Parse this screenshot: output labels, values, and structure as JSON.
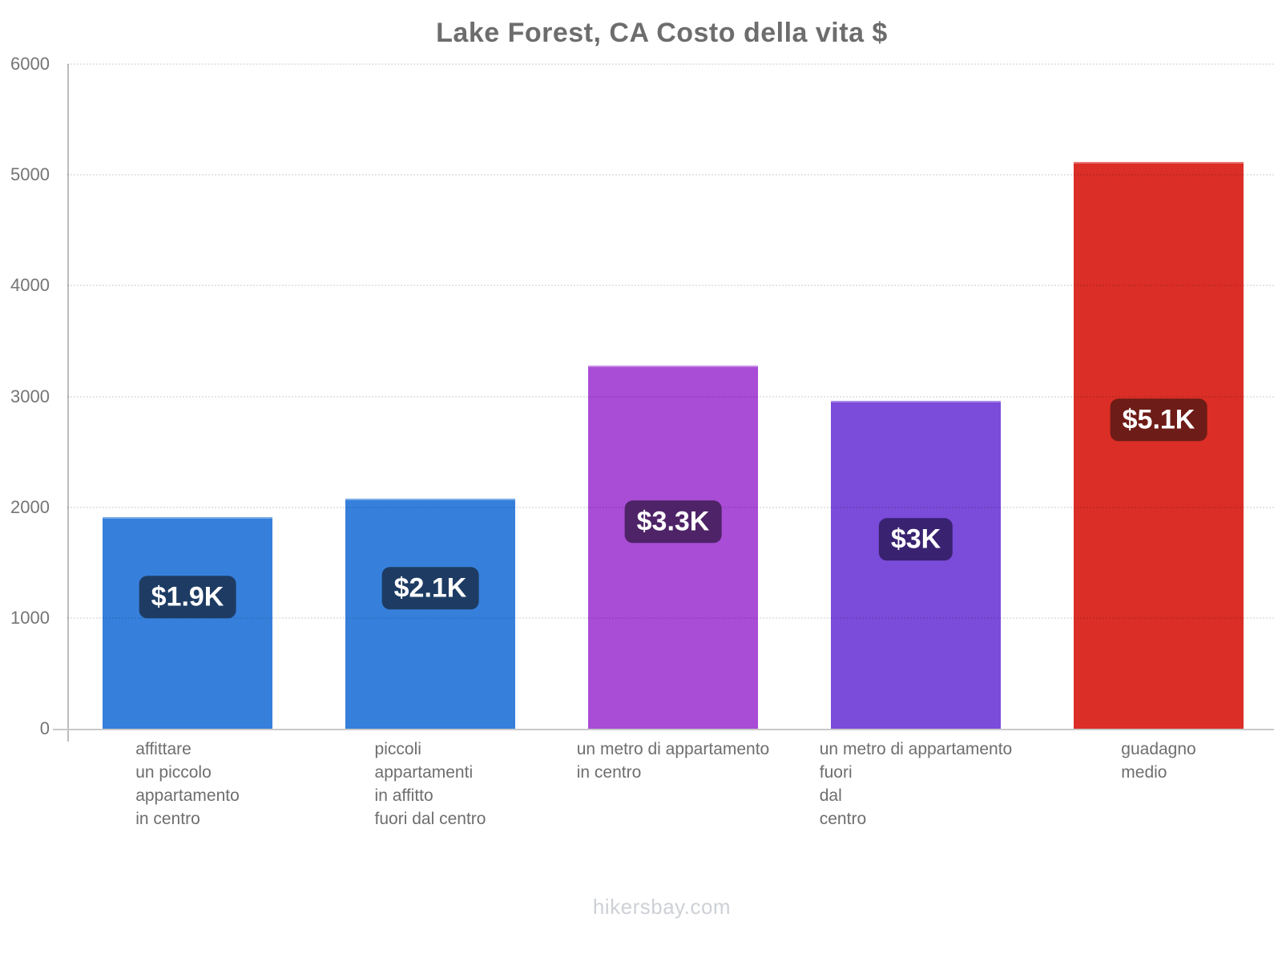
{
  "title": "Lake Forest, CA Costo della vita $",
  "footer": "hikersbay.com",
  "chart_data": {
    "type": "bar",
    "title": "Lake Forest, CA Costo della vita $",
    "categories": [
      [
        "affittare",
        "un piccolo",
        "appartamento",
        "in centro"
      ],
      [
        "piccoli",
        "appartamenti",
        "in affitto",
        "fuori dal centro"
      ],
      [
        "un metro di appartamento",
        "in centro"
      ],
      [
        "un metro di appartamento",
        "fuori",
        "dal",
        "centro"
      ],
      [
        "guadagno",
        "medio"
      ]
    ],
    "values": [
      1910,
      2080,
      3280,
      2960,
      5120
    ],
    "value_labels": [
      "$1.9K",
      "$2.1K",
      "$3.3K",
      "$3K",
      "$5.1K"
    ],
    "bar_colors": [
      "#3680dc",
      "#3680dc",
      "#a94cd6",
      "#7b4bda",
      "#db2e26"
    ],
    "badge_colors": [
      "#1e3c63",
      "#1e3c63",
      "#4e2367",
      "#392270",
      "#6e1c17"
    ],
    "xlabel": "",
    "ylabel": "",
    "ylim": [
      0,
      6000
    ],
    "yticks": [
      0,
      1000,
      2000,
      3000,
      4000,
      5000,
      6000
    ],
    "grid": "horizontal-dotted-over-bars",
    "legend": "none",
    "currency": "$",
    "source": "hikersbay.com"
  }
}
